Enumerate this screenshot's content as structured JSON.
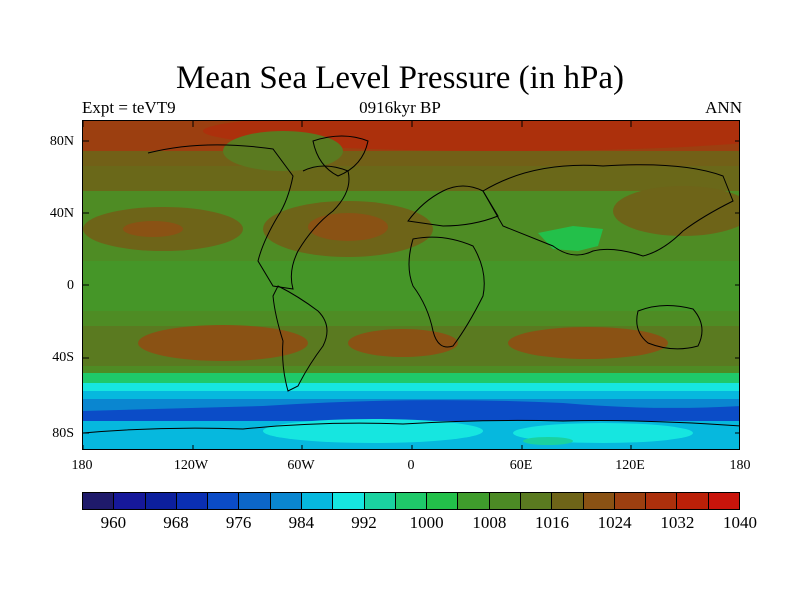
{
  "title": "Mean Sea Level Pressure (in hPa)",
  "subtitle_left": "Expt = teVT9",
  "subtitle_center": "0916kyr BP",
  "subtitle_right": "ANN",
  "y_ticks": [
    "80N",
    "40N",
    "0",
    "40S",
    "80S"
  ],
  "x_ticks": [
    "180",
    "120W",
    "60W",
    "0",
    "60E",
    "120E",
    "180"
  ],
  "colorbar_labels": [
    "960",
    "968",
    "976",
    "984",
    "992",
    "1000",
    "1008",
    "1016",
    "1024",
    "1032",
    "1040"
  ],
  "colors": {
    "bins": [
      "#1f1a6b",
      "#16189a",
      "#0c1f9d",
      "#0a2fb3",
      "#0b4cc7",
      "#0c66c8",
      "#0a86d0",
      "#06b8de",
      "#16e6e0",
      "#1ad2a0",
      "#1fc96a",
      "#23c04a",
      "#3f9c2c",
      "#4c8a25",
      "#5a7a20",
      "#6e6418",
      "#8a5214",
      "#9c3f10",
      "#ac300c",
      "#bb2008",
      "#c9140b"
    ],
    "ocean_base": "#4e8c24",
    "polar_ocean": "#0c66c8"
  },
  "regions": [
    {
      "name": "arctic-high",
      "value": 1030
    },
    {
      "name": "subtropical-high-north",
      "value": 1024
    },
    {
      "name": "tropical-low",
      "value": 1012
    },
    {
      "name": "subtropical-high-south",
      "value": 1024
    },
    {
      "name": "southern-ocean-trough",
      "value": 984
    },
    {
      "name": "antarctic-low",
      "value": 996
    }
  ]
}
